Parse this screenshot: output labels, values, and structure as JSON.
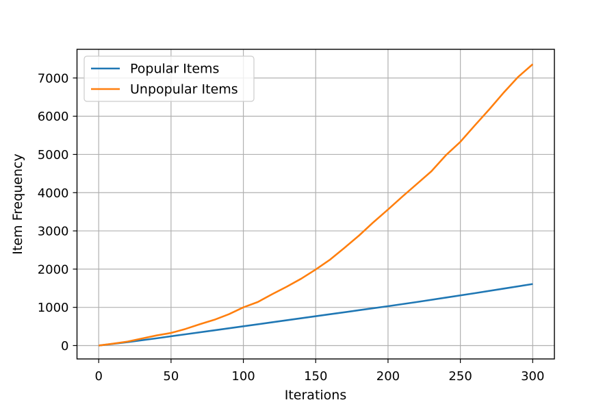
{
  "chart_data": {
    "type": "line",
    "title": "",
    "xlabel": "Iterations",
    "ylabel": "Item Frequency",
    "xlim": [
      -15,
      315
    ],
    "ylim": [
      -350,
      7750
    ],
    "xticks": [
      0,
      50,
      100,
      150,
      200,
      250,
      300
    ],
    "yticks": [
      0,
      1000,
      2000,
      3000,
      4000,
      5000,
      6000,
      7000
    ],
    "grid": true,
    "legend": "top-left",
    "series": [
      {
        "name": "Popular Items",
        "color": "#1f77b4",
        "x": [
          0,
          20,
          40,
          60,
          80,
          100,
          120,
          140,
          160,
          180,
          200,
          220,
          240,
          260,
          280,
          300
        ],
        "y": [
          0,
          90,
          190,
          295,
          400,
          505,
          610,
          715,
          820,
          925,
          1030,
          1140,
          1255,
          1370,
          1490,
          1610
        ]
      },
      {
        "name": "Unpopular Items",
        "color": "#ff7f0e",
        "x": [
          0,
          10,
          20,
          30,
          40,
          50,
          60,
          70,
          80,
          90,
          100,
          110,
          120,
          130,
          140,
          150,
          160,
          170,
          180,
          190,
          200,
          210,
          220,
          230,
          240,
          250,
          260,
          270,
          280,
          290,
          300
        ],
        "y": [
          0,
          50,
          105,
          185,
          265,
          330,
          435,
          560,
          675,
          820,
          1000,
          1140,
          1345,
          1540,
          1750,
          1990,
          2250,
          2560,
          2880,
          3230,
          3560,
          3900,
          4230,
          4560,
          4980,
          5330,
          5760,
          6180,
          6620,
          7030,
          7360
        ]
      }
    ]
  }
}
